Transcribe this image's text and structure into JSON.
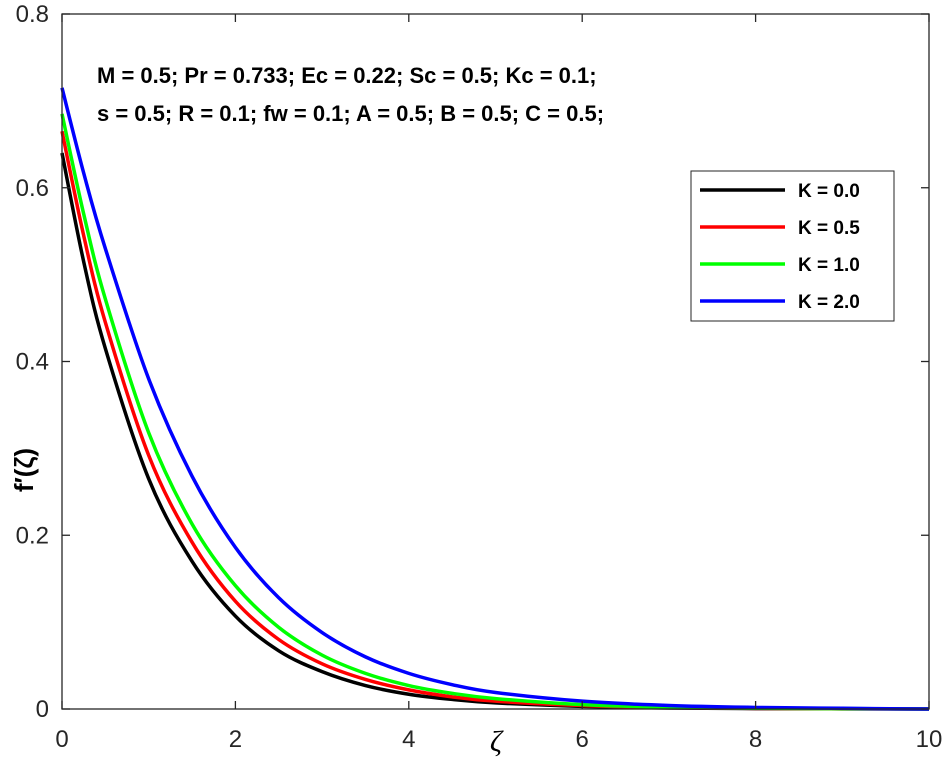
{
  "chart_data": {
    "type": "line",
    "xlabel": "ζ",
    "ylabel": "f′(ζ)",
    "xlim": [
      0,
      10
    ],
    "ylim": [
      0,
      0.8
    ],
    "xticks": [
      0,
      2,
      4,
      6,
      8,
      10
    ],
    "yticks": [
      0,
      0.2,
      0.4,
      0.6,
      0.8
    ],
    "xtick_labels": [
      "0",
      "2",
      "4",
      "6",
      "8",
      "10"
    ],
    "ytick_labels": [
      "0",
      "0.2",
      "0.4",
      "0.6",
      "0.8"
    ],
    "grid": false,
    "legend_position": "top-right",
    "annotations": [
      "M = 0.5; Pr = 0.733; Ec = 0.22; Sc = 0.5; Kc = 0.1;",
      "s = 0.5; R = 0.1; fw = 0.1; A = 0.5; B = 0.5; C = 0.5;"
    ],
    "series": [
      {
        "name": "K = 0.0",
        "color": "#000000",
        "x": [
          0,
          0.25,
          0.5,
          1,
          1.5,
          2,
          2.5,
          3,
          3.5,
          4,
          4.5,
          5,
          6,
          7,
          8,
          9,
          10
        ],
        "y": [
          0.64,
          0.515,
          0.415,
          0.265,
          0.17,
          0.107,
          0.067,
          0.043,
          0.027,
          0.017,
          0.011,
          0.007,
          0.003,
          0.0012,
          0.0005,
          0.0002,
          0.0
        ]
      },
      {
        "name": "K = 0.5",
        "color": "#ff0000",
        "x": [
          0,
          0.25,
          0.5,
          1,
          1.5,
          2,
          2.5,
          3,
          3.5,
          4,
          4.5,
          5,
          6,
          7,
          8,
          9,
          10
        ],
        "y": [
          0.665,
          0.545,
          0.445,
          0.292,
          0.192,
          0.124,
          0.08,
          0.052,
          0.034,
          0.022,
          0.014,
          0.009,
          0.004,
          0.0016,
          0.0007,
          0.0003,
          0.0
        ]
      },
      {
        "name": "K = 1.0",
        "color": "#00ff00",
        "x": [
          0,
          0.25,
          0.5,
          1,
          1.5,
          2,
          2.5,
          3,
          3.5,
          4,
          4.5,
          5,
          6,
          7,
          8,
          9,
          10
        ],
        "y": [
          0.685,
          0.57,
          0.472,
          0.318,
          0.213,
          0.142,
          0.094,
          0.062,
          0.041,
          0.027,
          0.018,
          0.012,
          0.005,
          0.002,
          0.0009,
          0.0004,
          0.0
        ]
      },
      {
        "name": "K = 2.0",
        "color": "#0000ff",
        "x": [
          0,
          0.25,
          0.5,
          1,
          1.5,
          2,
          2.5,
          3,
          3.5,
          4,
          4.5,
          5,
          6,
          7,
          8,
          9,
          10
        ],
        "y": [
          0.715,
          0.617,
          0.53,
          0.38,
          0.268,
          0.186,
          0.128,
          0.088,
          0.06,
          0.041,
          0.028,
          0.019,
          0.009,
          0.004,
          0.0018,
          0.0008,
          0.0
        ]
      }
    ]
  }
}
